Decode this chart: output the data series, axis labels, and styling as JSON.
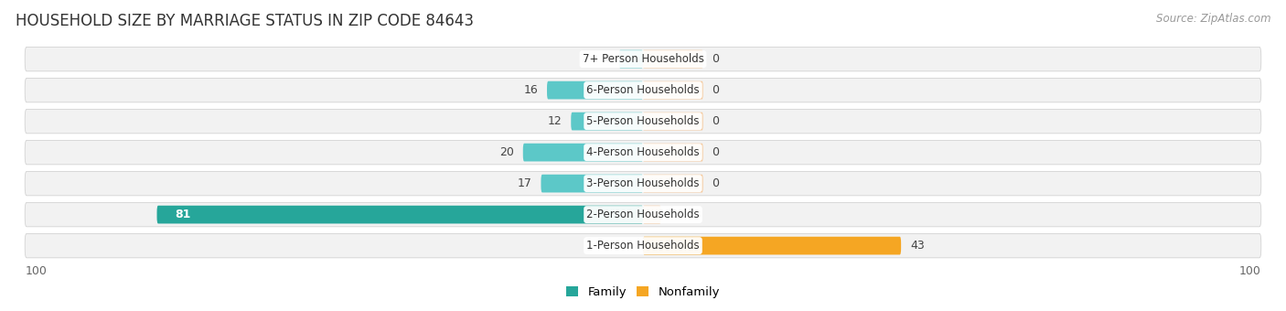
{
  "title": "HOUSEHOLD SIZE BY MARRIAGE STATUS IN ZIP CODE 84643",
  "source": "Source: ZipAtlas.com",
  "categories": [
    "7+ Person Households",
    "6-Person Households",
    "5-Person Households",
    "4-Person Households",
    "3-Person Households",
    "2-Person Households",
    "1-Person Households"
  ],
  "family_values": [
    4,
    16,
    12,
    20,
    17,
    81,
    0
  ],
  "nonfamily_values": [
    0,
    0,
    0,
    0,
    0,
    3,
    43
  ],
  "family_color_light": "#5CC8C8",
  "family_color_dark": "#26A69A",
  "nonfamily_color_light": "#F5C89A",
  "nonfamily_color_orange": "#F5A623",
  "row_bg_color": "#F2F2F2",
  "row_border_color": "#DDDDDD",
  "max_value": 100,
  "legend_family": "Family",
  "legend_nonfamily": "Nonfamily",
  "title_fontsize": 12,
  "label_fontsize": 9,
  "tick_fontsize": 9,
  "source_fontsize": 8.5,
  "nonfamily_stub": 10
}
